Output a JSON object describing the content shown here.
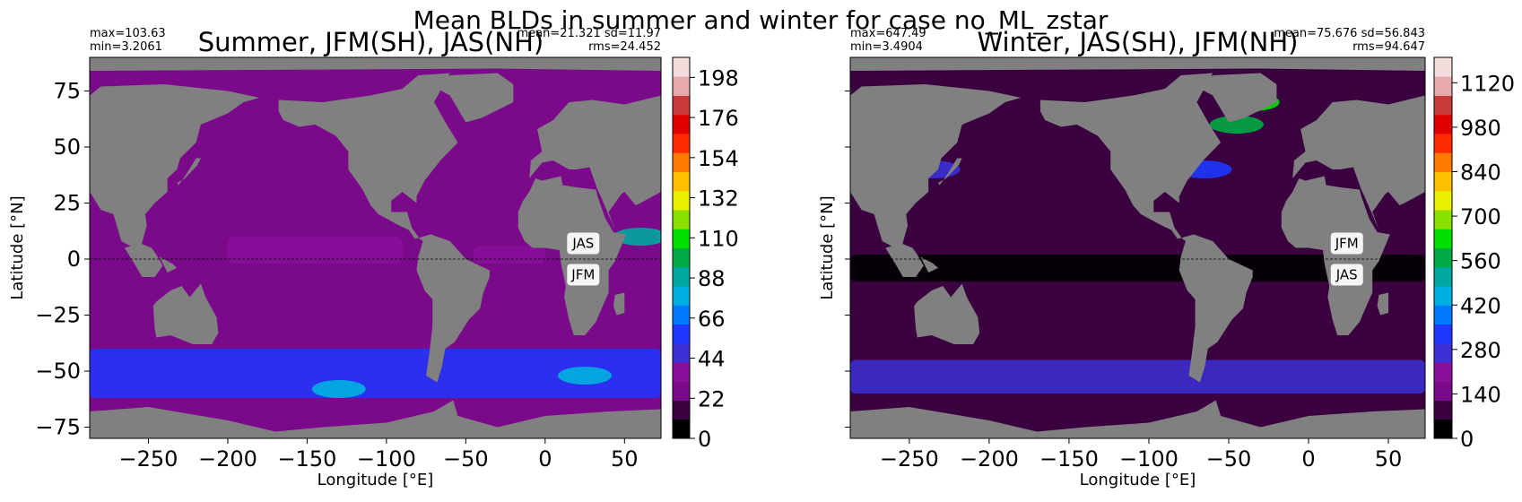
{
  "figure_title": "Mean BLDs in summer and winter for case no_ML_zstar",
  "colors": {
    "ocean_base": "#8a0f9a",
    "land": "#808080",
    "background": "#ffffff"
  },
  "colormap": [
    "#000000",
    "#3a0040",
    "#7a0a8a",
    "#8a0f9a",
    "#3b2fd6",
    "#1e36ff",
    "#0078ff",
    "#00b0e0",
    "#00a8a0",
    "#00aa44",
    "#00e000",
    "#8ae000",
    "#e8f000",
    "#ffc000",
    "#ff7a00",
    "#ff2a00",
    "#e00000",
    "#c83a3a",
    "#e7a9a9",
    "#f3dcdc"
  ],
  "chart_data": [
    {
      "type": "heatmap",
      "title": "Summer, JFM(SH), JAS(NH)",
      "stats_left": [
        "max=103.63",
        "min=3.2061"
      ],
      "stats_right": [
        "mean=21.321 sd=11.97",
        "rms=24.452"
      ],
      "xlabel": "Longitude [°E]",
      "ylabel": "Latitude [°N]",
      "xlim": [
        -287,
        73
      ],
      "ylim": [
        -80,
        90
      ],
      "x_ticks": [
        -250,
        -200,
        -150,
        -100,
        -50,
        0,
        50
      ],
      "x_tick_labels": [
        "−250",
        "−200",
        "−150",
        "−100",
        "−50",
        "0",
        "50"
      ],
      "y_ticks": [
        75,
        50,
        25,
        0,
        -25,
        -50,
        -75
      ],
      "y_tick_labels": [
        "75",
        "50",
        "25",
        "0",
        "−25",
        "−50",
        "−75"
      ],
      "y_tick_labels_visible": true,
      "equator_line": true,
      "annotations": [
        {
          "text": "JAS",
          "lon": 24,
          "lat": 7
        },
        {
          "text": "JFM",
          "lon": 24,
          "lat": -7
        }
      ],
      "colorbar": {
        "range": [
          0,
          209
        ],
        "ticks": [
          0,
          22,
          44,
          66,
          88,
          110,
          132,
          154,
          176,
          198
        ],
        "tick_labels": [
          "0",
          "22",
          "44",
          "66",
          "88",
          "110",
          "132",
          "154",
          "176",
          "198"
        ]
      },
      "ocean_fill_value": 30,
      "features": [
        {
          "name": "southern-ocean-band",
          "lat_range": [
            -62,
            -40
          ],
          "value": 55
        },
        {
          "name": "equatorial-pacific-band",
          "lon_range": [
            -200,
            -90
          ],
          "lat_range": [
            -2,
            10
          ],
          "value": 40
        },
        {
          "name": "equatorial-atlantic-band",
          "lon_range": [
            -45,
            0
          ],
          "lat_range": [
            -2,
            6
          ],
          "value": 40
        },
        {
          "name": "indian-west-high",
          "lon": 60,
          "lat": 10,
          "value": 85
        },
        {
          "name": "southern-ocean-hotspot",
          "lon": -130,
          "lat": -58,
          "value": 80
        },
        {
          "name": "southern-ocean-hotspot-2",
          "lon": 25,
          "lat": -52,
          "value": 75
        }
      ]
    },
    {
      "type": "heatmap",
      "title": "Winter, JAS(SH), JFM(NH)",
      "stats_left": [
        "max=647.49",
        "min=3.4904"
      ],
      "stats_right": [
        "mean=75.676 sd=56.843",
        "rms=94.647"
      ],
      "xlabel": "Longitude [°E]",
      "ylabel": "Latitude [°N]",
      "xlim": [
        -287,
        73
      ],
      "ylim": [
        -80,
        90
      ],
      "x_ticks": [
        -250,
        -200,
        -150,
        -100,
        -50,
        0,
        50
      ],
      "x_tick_labels": [
        "−250",
        "−200",
        "−150",
        "−100",
        "−50",
        "0",
        "50"
      ],
      "y_ticks": [
        75,
        50,
        25,
        0,
        -25,
        -50,
        -75
      ],
      "y_tick_labels": [
        "75",
        "50",
        "25",
        "0",
        "−25",
        "−50",
        "−75"
      ],
      "y_tick_labels_visible": false,
      "equator_line": true,
      "annotations": [
        {
          "text": "JFM",
          "lon": 24,
          "lat": 7
        },
        {
          "text": "JAS",
          "lon": 24,
          "lat": -7
        }
      ],
      "colorbar": {
        "range": [
          0,
          1200
        ],
        "ticks": [
          0,
          140,
          280,
          420,
          560,
          700,
          840,
          980,
          1120
        ],
        "tick_labels": [
          "0",
          "140",
          "280",
          "420",
          "560",
          "700",
          "840",
          "980",
          "1120"
        ]
      },
      "ocean_fill_value": 90,
      "features": [
        {
          "name": "equatorial-dark-band",
          "lat_range": [
            -10,
            2
          ],
          "value": 20
        },
        {
          "name": "southern-ocean-band",
          "lat_range": [
            -60,
            -45
          ],
          "value": 250
        },
        {
          "name": "north-atlantic-deep-mixing",
          "lon": -45,
          "lat": 60,
          "value": 550
        },
        {
          "name": "labrador-sea-hotspot",
          "lon": -35,
          "lat": 70,
          "value": 600
        },
        {
          "name": "kuroshio-extension",
          "lon": -235,
          "lat": 40,
          "value": 260
        },
        {
          "name": "gulf-stream",
          "lon": -65,
          "lat": 40,
          "value": 300
        }
      ]
    }
  ]
}
